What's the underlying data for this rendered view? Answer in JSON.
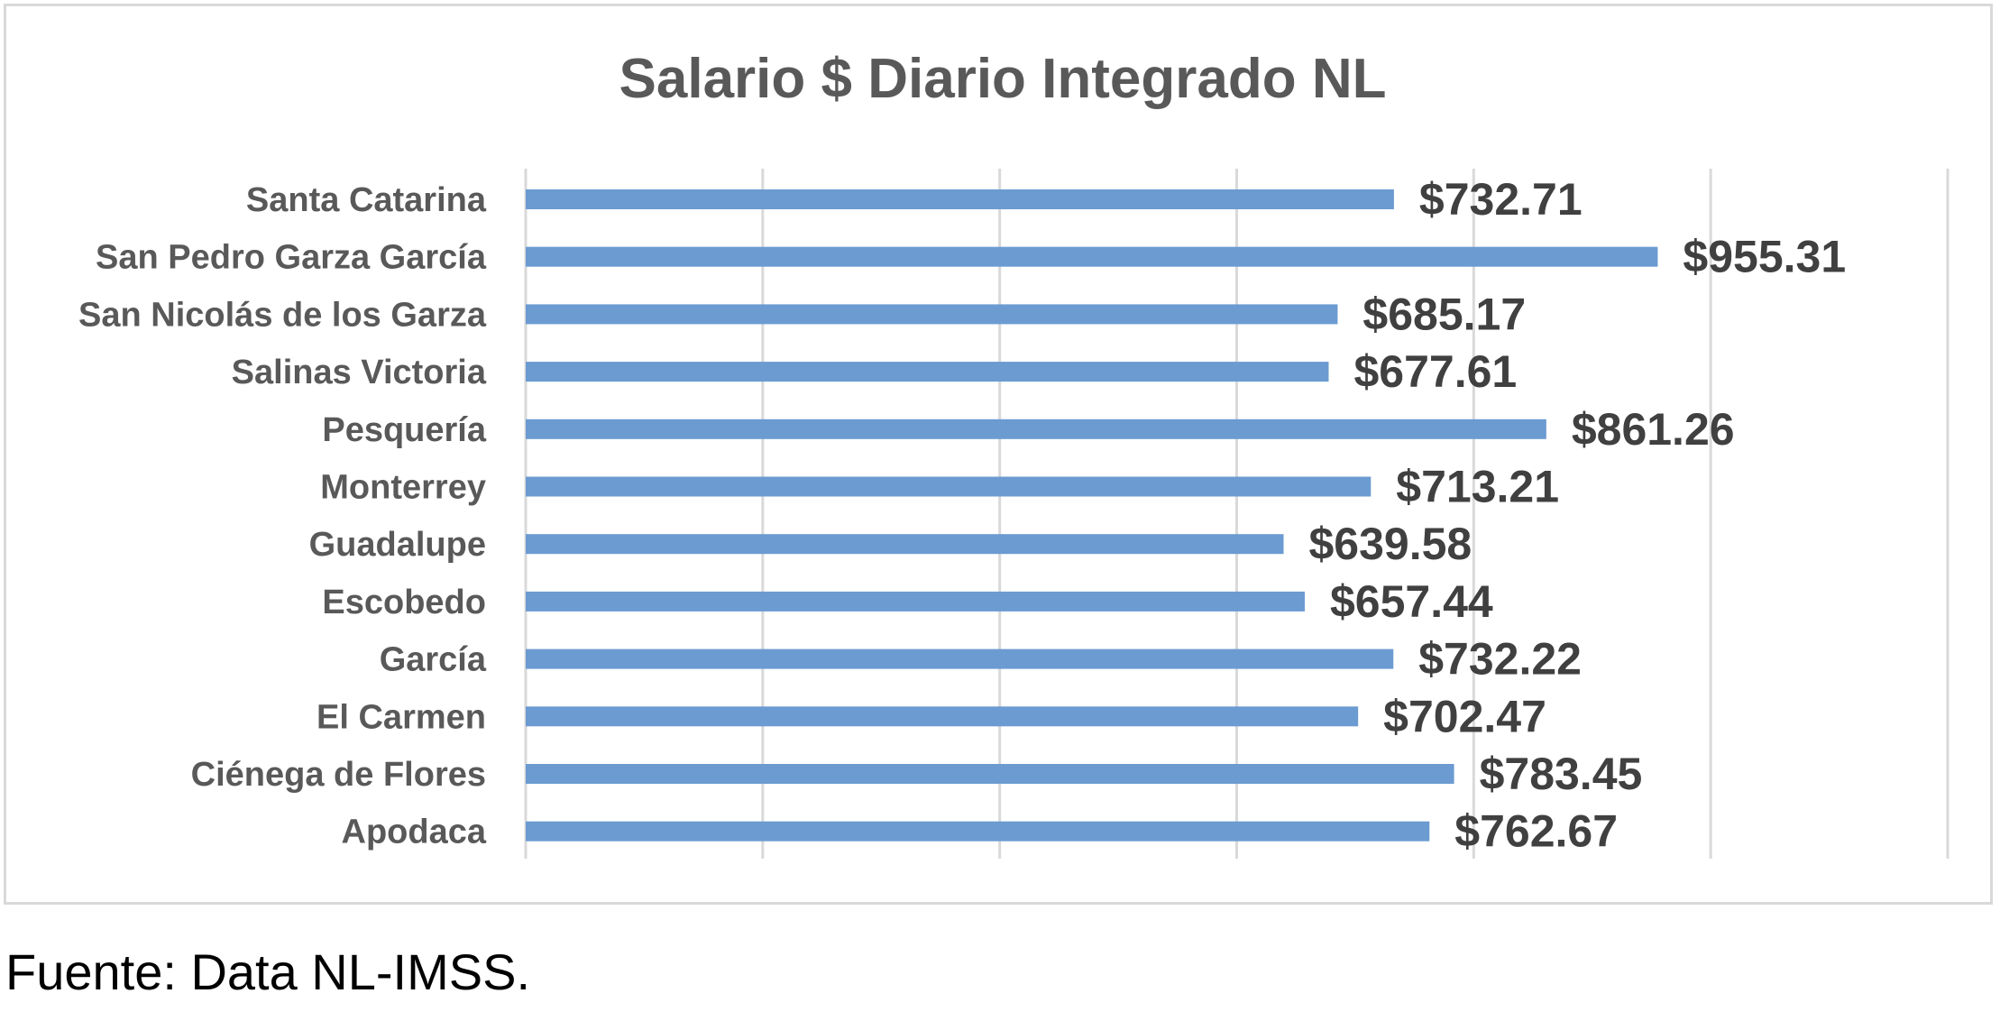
{
  "chart_data": {
    "type": "bar",
    "orientation": "horizontal",
    "title": "Salario $ Diario Integrado NL",
    "xlabel": "",
    "ylabel": "",
    "xlim": [
      0,
      1200
    ],
    "grid": true,
    "categories": [
      "Santa Catarina",
      "San Pedro Garza García",
      "San Nicolás de los Garza",
      "Salinas Victoria",
      "Pesquería",
      "Monterrey",
      "Guadalupe",
      "Escobedo",
      "García",
      "El Carmen",
      "Ciénega de Flores",
      "Apodaca"
    ],
    "values": [
      732.71,
      955.31,
      685.17,
      677.61,
      861.26,
      713.21,
      639.58,
      657.44,
      732.22,
      702.47,
      783.45,
      762.67
    ],
    "data_labels": [
      "$732.71",
      "$955.31",
      "$685.17",
      "$677.61",
      "$861.26",
      "$713.21",
      "$639.58",
      "$657.44",
      "$732.22",
      "$702.47",
      "$783.45",
      "$762.67"
    ],
    "colors": {
      "bar": "#6b9bd1",
      "gridline": "#d9d9d9",
      "title": "#595959",
      "category_label": "#595959",
      "data_label": "#404040"
    }
  },
  "footer": {
    "source": "Fuente: Data NL-IMSS."
  }
}
